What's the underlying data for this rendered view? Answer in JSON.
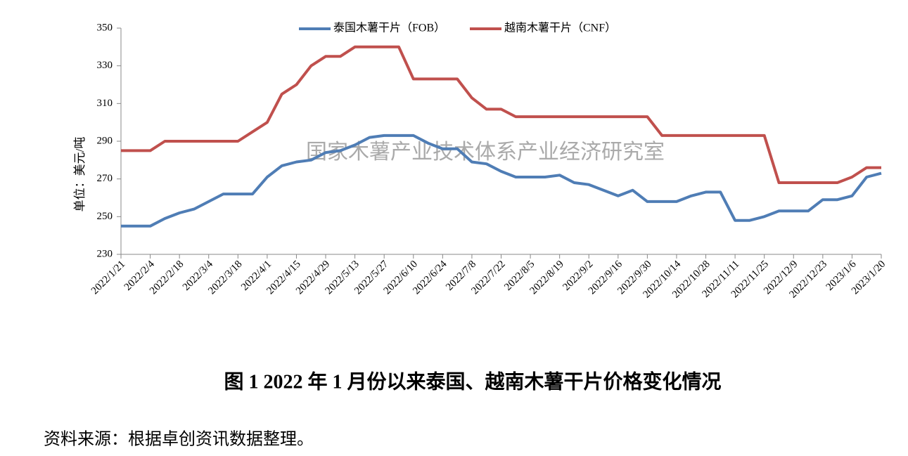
{
  "chart_data": {
    "type": "line",
    "y_axis_label": "单位：美元/吨",
    "watermark": "国家木薯产业技术体系产业经济研究室",
    "caption": "图 1   2022 年 1 月份以来泰国、越南木薯干片价格变化情况",
    "source": "资料来源：根据卓创资讯数据整理。",
    "categories": [
      "2022/1/21",
      null,
      "2022/2/4",
      null,
      "2022/2/18",
      null,
      "2022/3/4",
      null,
      "2022/3/18",
      null,
      "2022/4/1",
      null,
      "2022/4/15",
      null,
      "2022/4/29",
      null,
      "2022/5/13",
      null,
      "2022/5/27",
      null,
      "2022/6/10",
      null,
      "2022/6/24",
      null,
      "2022/7/8",
      null,
      "2022/7/22",
      null,
      "2022/8/5",
      null,
      "2022/8/19",
      null,
      "2022/9/2",
      null,
      "2022/9/16",
      null,
      "2022/9/30",
      null,
      "2022/10/14",
      null,
      "2022/10/28",
      null,
      "2022/11/11",
      null,
      "2022/11/25",
      null,
      "2022/12/9",
      null,
      "2022/12/23",
      null,
      "2023/1/6",
      null,
      "2023/1/20"
    ],
    "series": [
      {
        "name": "泰国木薯干片（FOB）",
        "color": "#4f7db5",
        "values": [
          245,
          245,
          245,
          249,
          252,
          254,
          258,
          262,
          262,
          262,
          271,
          277,
          279,
          280,
          284,
          285,
          288,
          292,
          293,
          293,
          293,
          289,
          286,
          286,
          279,
          278,
          274,
          271,
          271,
          271,
          272,
          268,
          267,
          264,
          261,
          264,
          258,
          258,
          258,
          261,
          263,
          263,
          248,
          248,
          250,
          253,
          253,
          253,
          259,
          259,
          261,
          271,
          273
        ]
      },
      {
        "name": "越南木薯干片（CNF）",
        "color": "#c0504d",
        "values": [
          285,
          285,
          285,
          290,
          290,
          290,
          290,
          290,
          290,
          295,
          300,
          315,
          320,
          330,
          335,
          335,
          340,
          340,
          340,
          340,
          323,
          323,
          323,
          323,
          313,
          307,
          307,
          303,
          303,
          303,
          303,
          303,
          303,
          303,
          303,
          303,
          303,
          293,
          293,
          293,
          293,
          293,
          293,
          293,
          293,
          268,
          268,
          268,
          268,
          268,
          271,
          276,
          276
        ]
      }
    ],
    "ylim": [
      230,
      350
    ],
    "yticks": [
      230,
      250,
      270,
      290,
      310,
      330,
      350
    ]
  }
}
